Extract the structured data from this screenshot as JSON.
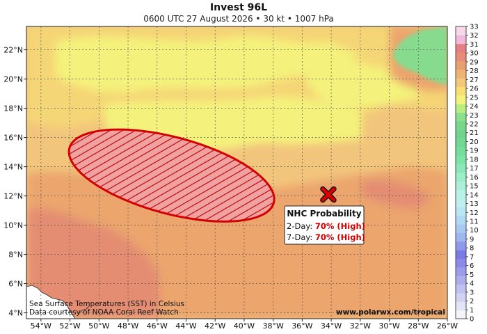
{
  "title": "Invest 96L",
  "subtitle": "0600 UTC 27 August 2026 • 30 kt • 1007 hPa",
  "map": {
    "lon_range": [
      -55,
      -26
    ],
    "lat_range": [
      3.6,
      23.6
    ],
    "lon_ticks": [
      "54°W",
      "52°W",
      "50°W",
      "48°W",
      "46°W",
      "44°W",
      "42°W",
      "40°W",
      "38°W",
      "36°W",
      "34°W",
      "32°W",
      "30°W",
      "28°W",
      "26°W"
    ],
    "lat_ticks": [
      "4°N",
      "6°N",
      "8°N",
      "10°N",
      "12°N",
      "14°N",
      "16°N",
      "18°N",
      "20°N",
      "22°N"
    ],
    "credit_line1": "Sea Surface Temperatures (SST) in Celsius",
    "credit_line2": "Data courtesy of NOAA Coral Reef Watch",
    "website": "www.polarwx.com/tropical"
  },
  "outlook": {
    "center_lon": -45,
    "center_lat": 13.4,
    "system_lon": -34.2,
    "system_lat": 12.1,
    "outline_color": "#d40000",
    "hatch_color": "#b30000",
    "fill_color": "#f2a1a1",
    "label_title": "NHC Probability",
    "two_day_label": "2-Day:",
    "two_day_value": "70% (High)",
    "seven_day_label": "7-Day:",
    "seven_day_value": "70% (High)",
    "value_color": "#d40000"
  },
  "colorbar": {
    "ticks": [
      "0",
      "1",
      "2",
      "3",
      "4",
      "5",
      "6",
      "7",
      "8",
      "9",
      "10",
      "11",
      "12",
      "13",
      "14",
      "15",
      "16",
      "17",
      "18",
      "19",
      "20",
      "21",
      "22",
      "23",
      "24",
      "25",
      "26",
      "27",
      "28",
      "29",
      "30",
      "31",
      "32",
      "33"
    ],
    "colors": [
      "#f4f4fb",
      "#e4e4f7",
      "#d2d2f4",
      "#c0c0f1",
      "#aeaeef",
      "#9c9cec",
      "#8a8ae9",
      "#7b7be6",
      "#8d9aec",
      "#9fb6f0",
      "#a9c9f2",
      "#b2d9f4",
      "#b8e6f2",
      "#bfefee",
      "#b7f2e4",
      "#a9f0d6",
      "#9aeec8",
      "#8be9b7",
      "#7de3a7",
      "#73df9c",
      "#6ed993",
      "#6ed48f",
      "#77d88c",
      "#8be08a",
      "#b8ee7f",
      "#f4f47a",
      "#f7df74",
      "#f3c979",
      "#eeb474",
      "#e99f6f",
      "#e88c78",
      "#e57f84",
      "#f0b9d9",
      "#f7d7ea"
    ]
  },
  "palette": {
    "sea_base": "#f2c57c",
    "sea_warm": "#eba56d",
    "sea_hot": "#e48d72",
    "sea_mid": "#f5d676",
    "sea_cool": "#f4f27c",
    "land": "#ffffff",
    "green_patch": "#86db8e"
  }
}
